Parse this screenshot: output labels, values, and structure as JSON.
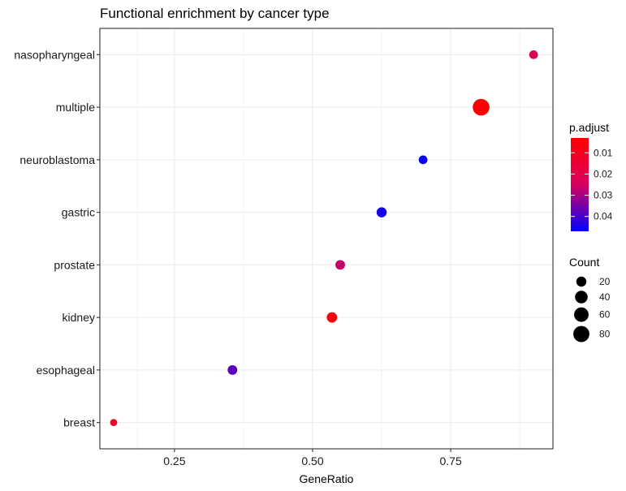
{
  "chart_data": {
    "type": "scatter",
    "title": "Functional enrichment by cancer type",
    "xlabel": "GeneRatio",
    "ylabel": "",
    "xlim": [
      0.115,
      0.935
    ],
    "xticks": [
      0.25,
      0.5,
      0.75
    ],
    "xtick_labels": [
      "0.25",
      "0.50",
      "0.75"
    ],
    "categories": [
      "breast",
      "esophageal",
      "kidney",
      "prostate",
      "gastric",
      "neuroblastoma",
      "multiple",
      "nasopharyngeal"
    ],
    "points": [
      {
        "category": "nasopharyngeal",
        "x": 0.9,
        "count": 12,
        "p_adjust": 0.022
      },
      {
        "category": "multiple",
        "x": 0.805,
        "count": 88,
        "p_adjust": 0.003
      },
      {
        "category": "neuroblastoma",
        "x": 0.7,
        "count": 12,
        "p_adjust": 0.046
      },
      {
        "category": "gastric",
        "x": 0.625,
        "count": 20,
        "p_adjust": 0.045
      },
      {
        "category": "prostate",
        "x": 0.55,
        "count": 17,
        "p_adjust": 0.027
      },
      {
        "category": "kidney",
        "x": 0.535,
        "count": 22,
        "p_adjust": 0.006
      },
      {
        "category": "esophageal",
        "x": 0.355,
        "count": 17,
        "p_adjust": 0.038
      },
      {
        "category": "breast",
        "x": 0.14,
        "count": 5,
        "p_adjust": 0.012
      }
    ],
    "grid": true,
    "legend_placement": "right",
    "color_legend": {
      "title": "p.adjust",
      "range": [
        0.003,
        0.047
      ],
      "ticks": [
        0.01,
        0.02,
        0.03,
        0.04
      ],
      "tick_labels": [
        "0.01",
        "0.02",
        "0.03",
        "0.04"
      ],
      "low_color": "#ff0000",
      "high_color": "#0000ff"
    },
    "size_legend": {
      "title": "Count",
      "values": [
        20,
        40,
        60,
        80
      ],
      "labels": [
        "20",
        "40",
        "60",
        "80"
      ],
      "point_color": "#000000"
    }
  }
}
